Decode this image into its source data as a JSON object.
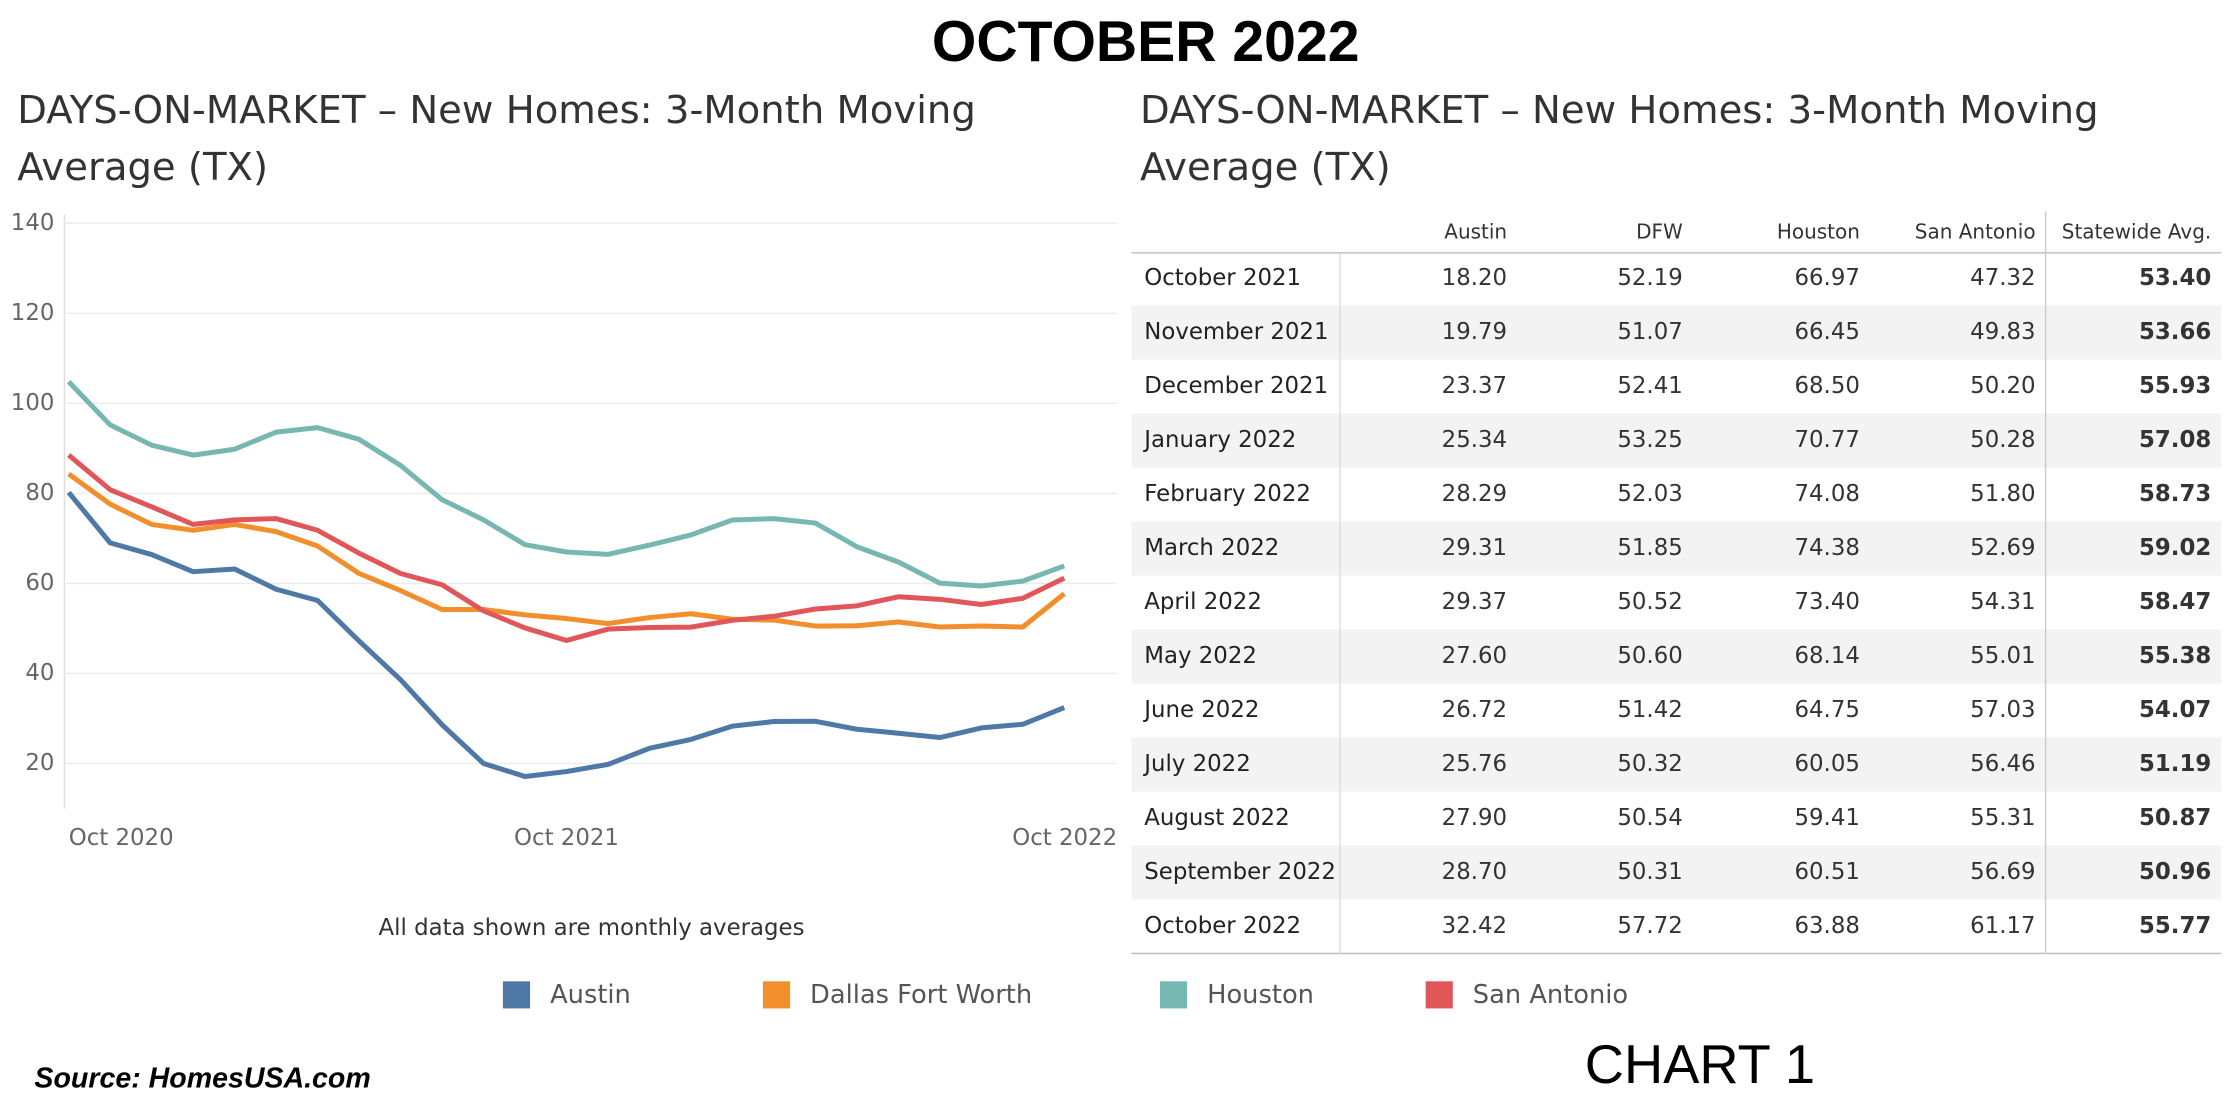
{
  "header": {
    "title": "OCTOBER 2022"
  },
  "chart_data": {
    "type": "line",
    "title": "DAYS-ON-MARKET – New Homes: 3-Month Moving Average (TX)",
    "categories": [
      "Oct 2020",
      null,
      null,
      null,
      null,
      null,
      null,
      null,
      null,
      null,
      null,
      null,
      "Oct 2021",
      null,
      null,
      null,
      null,
      null,
      null,
      null,
      null,
      null,
      null,
      null,
      "Oct 2022"
    ],
    "series": [
      {
        "name": "Austin",
        "color": "#4e79a7",
        "values": [
          80.2,
          69.0,
          66.4,
          62.6,
          63.2,
          58.7,
          56.2,
          47.2,
          38.6,
          28.6,
          20.0,
          17.1,
          18.2,
          19.79,
          23.37,
          25.34,
          28.29,
          29.31,
          29.37,
          27.6,
          26.72,
          25.76,
          27.9,
          28.7,
          32.42
        ]
      },
      {
        "name": "Dallas Fort Worth",
        "color": "#f28e2b",
        "values": [
          84.3,
          77.6,
          73.1,
          71.8,
          73.1,
          71.5,
          68.3,
          62.2,
          58.4,
          54.2,
          54.2,
          53.0,
          52.19,
          51.07,
          52.41,
          53.25,
          52.03,
          51.85,
          50.52,
          50.6,
          51.42,
          50.32,
          50.54,
          50.31,
          57.72
        ]
      },
      {
        "name": "Houston",
        "color": "#76b7b2",
        "values": [
          104.8,
          95.2,
          90.7,
          88.5,
          89.8,
          93.6,
          94.6,
          92.0,
          86.2,
          78.6,
          74.1,
          68.6,
          66.97,
          66.45,
          68.5,
          70.77,
          74.08,
          74.38,
          73.4,
          68.14,
          64.75,
          60.05,
          59.41,
          60.51,
          63.88
        ]
      },
      {
        "name": "San Antonio",
        "color": "#e15759",
        "values": [
          88.5,
          80.8,
          77.0,
          73.1,
          74.1,
          74.4,
          71.8,
          66.7,
          62.2,
          59.7,
          53.9,
          50.1,
          47.32,
          49.83,
          50.2,
          50.28,
          51.8,
          52.69,
          54.31,
          55.01,
          57.03,
          56.46,
          55.31,
          56.69,
          61.17
        ]
      }
    ],
    "ylim": [
      10,
      142
    ],
    "yticks": [
      20,
      40,
      60,
      80,
      100,
      120,
      140
    ],
    "grid": true,
    "legend": "bottom",
    "note": "All data shown are monthly averages"
  },
  "table": {
    "title": "DAYS-ON-MARKET – New Homes: 3-Month Moving Average (TX)",
    "columns": [
      "Austin",
      "DFW",
      "Houston",
      "San Antonio",
      "Statewide Avg."
    ],
    "rows": [
      [
        "October 2021",
        "18.20",
        "52.19",
        "66.97",
        "47.32",
        "53.40"
      ],
      [
        "November 2021",
        "19.79",
        "51.07",
        "66.45",
        "49.83",
        "53.66"
      ],
      [
        "December 2021",
        "23.37",
        "52.41",
        "68.50",
        "50.20",
        "55.93"
      ],
      [
        "January 2022",
        "25.34",
        "53.25",
        "70.77",
        "50.28",
        "57.08"
      ],
      [
        "February 2022",
        "28.29",
        "52.03",
        "74.08",
        "51.80",
        "58.73"
      ],
      [
        "March 2022",
        "29.31",
        "51.85",
        "74.38",
        "52.69",
        "59.02"
      ],
      [
        "April 2022",
        "29.37",
        "50.52",
        "73.40",
        "54.31",
        "58.47"
      ],
      [
        "May 2022",
        "27.60",
        "50.60",
        "68.14",
        "55.01",
        "55.38"
      ],
      [
        "June 2022",
        "26.72",
        "51.42",
        "64.75",
        "57.03",
        "54.07"
      ],
      [
        "July 2022",
        "25.76",
        "50.32",
        "60.05",
        "56.46",
        "51.19"
      ],
      [
        "August 2022",
        "27.90",
        "50.54",
        "59.41",
        "55.31",
        "50.87"
      ],
      [
        "September 2022",
        "28.70",
        "50.31",
        "60.51",
        "56.69",
        "50.96"
      ],
      [
        "October 2022",
        "32.42",
        "57.72",
        "63.88",
        "61.17",
        "55.77"
      ]
    ]
  },
  "footer": {
    "source": "Source: HomesUSA.com",
    "label": "CHART 1"
  }
}
